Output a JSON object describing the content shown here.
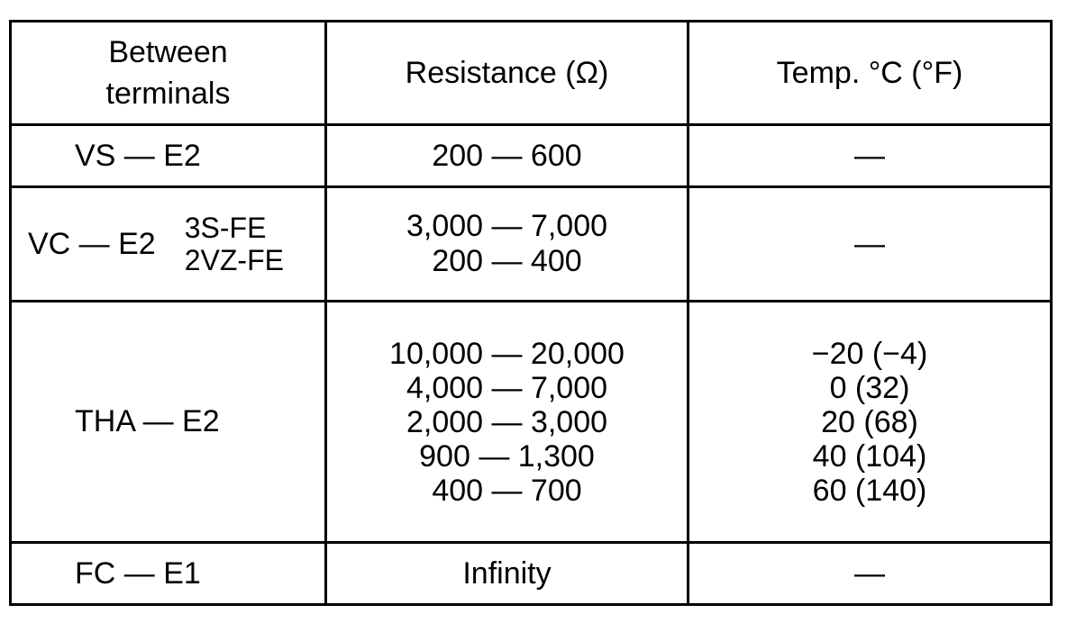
{
  "header": [
    "Between terminals",
    "Resistance (Ω)",
    "Temp. °C (°F)"
  ],
  "rows": [
    {
      "terminal": "VS — E2",
      "resistance": [
        "200 — 600"
      ],
      "temp": [
        "—"
      ]
    },
    {
      "terminal": "VC — E2",
      "variants": [
        "3S-FE",
        "2VZ-FE"
      ],
      "resistance": [
        "3,000 — 7,000",
        "200 — 400"
      ],
      "temp": [
        "—"
      ]
    },
    {
      "terminal": "THA — E2",
      "resistance": [
        "10,000 — 20,000",
        "4,000 — 7,000",
        "2,000 — 3,000",
        "900 — 1,300",
        "400 — 700"
      ],
      "temp": [
        "−20 (−4)",
        "0 (32)",
        "20 (68)",
        "40 (104)",
        "60 (140)"
      ]
    },
    {
      "terminal": "FC — E1",
      "resistance": [
        "Infinity"
      ],
      "temp": [
        "—"
      ]
    }
  ]
}
